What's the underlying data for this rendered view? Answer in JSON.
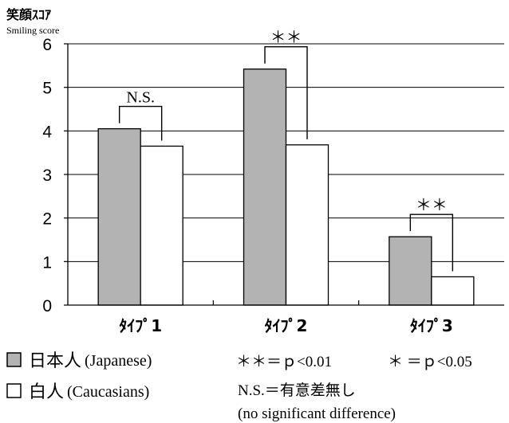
{
  "chart_data": {
    "type": "bar",
    "ylabel": "笑顔ｽｺｱ",
    "ylabel_sub": "Smiling score",
    "ylim": [
      0,
      6
    ],
    "yticks": [
      0,
      1,
      2,
      3,
      4,
      5,
      6
    ],
    "grid": true,
    "categories": [
      "ﾀｲﾌﾟ1",
      "ﾀｲﾌﾟ2",
      "ﾀｲﾌﾟ3"
    ],
    "series": [
      {
        "name": "日本人 (Japanese)",
        "values": [
          4.05,
          5.42,
          1.57
        ],
        "color": "#b3b3b3"
      },
      {
        "name": "白人 (Caucasians)",
        "values": [
          3.65,
          3.68,
          0.65
        ],
        "color": "#ffffff"
      }
    ],
    "annotations": [
      {
        "category": "ﾀｲﾌﾟ1",
        "label": "N.S."
      },
      {
        "category": "ﾀｲﾌﾟ2",
        "label": "＊＊"
      },
      {
        "category": "ﾀｲﾌﾟ3",
        "label": "＊＊"
      }
    ]
  },
  "legend": {
    "japanese_label": "日本人",
    "japanese_en": "(Japanese)",
    "caucasian_label": "白人",
    "caucasian_en": "(Caucasians)"
  },
  "notes": {
    "p001": "＊＊＝ｐ<0.01",
    "p005": "＊ ＝ｐ<0.05",
    "ns_jp": "N.S.＝有意差無し",
    "ns_en": "(no significant difference)"
  }
}
